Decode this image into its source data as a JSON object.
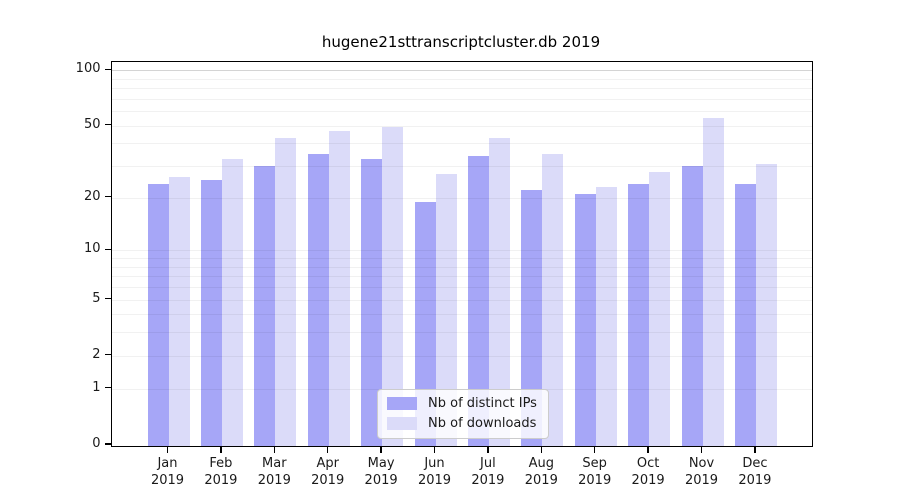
{
  "title": "hugene21sttranscriptcluster.db 2019",
  "chart_data": {
    "type": "bar",
    "title": "hugene21sttranscriptcluster.db 2019",
    "y_scale": "log10(1+x)",
    "categories": [
      "Jan",
      "Feb",
      "Mar",
      "Apr",
      "May",
      "Jun",
      "Jul",
      "Aug",
      "Sep",
      "Oct",
      "Nov",
      "Dec"
    ],
    "year": "2019",
    "series": [
      {
        "name": "Nb of distinct IPs",
        "color": "#a6a6f7",
        "values": [
          24,
          25,
          30,
          35,
          33,
          19,
          34,
          22,
          21,
          24,
          30,
          24
        ]
      },
      {
        "name": "Nb of downloads",
        "color": "#dbdbf9",
        "values": [
          26,
          33,
          43,
          47,
          49,
          27,
          43,
          35,
          23,
          28,
          55,
          31
        ]
      }
    ],
    "y_ticks": [
      100,
      50,
      20,
      10,
      5,
      2,
      1,
      0
    ],
    "gridlines": [
      1,
      2,
      3,
      4,
      5,
      6,
      7,
      8,
      9,
      10,
      20,
      30,
      40,
      50,
      60,
      70,
      80,
      90,
      100
    ],
    "ylim": [
      0,
      112
    ],
    "grid": "on",
    "legend_position": "bottom-center",
    "frame_color": "#000000",
    "gridline_color": "#ececec"
  }
}
